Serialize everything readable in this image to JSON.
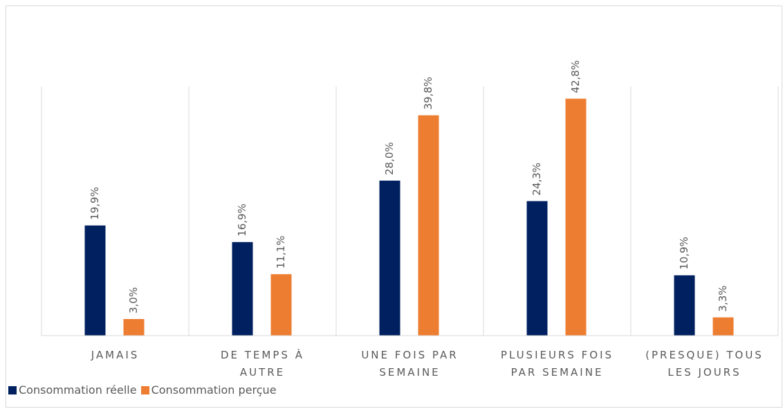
{
  "chart_data": {
    "type": "bar",
    "categories": [
      "JAMAIS",
      "DE TEMPS À AUTRE",
      "UNE FOIS PAR SEMAINE",
      "PLUSIEURS FOIS PAR SEMAINE",
      "(PRESQUE) TOUS LES JOURS"
    ],
    "series": [
      {
        "name": "Consommation réelle",
        "color": "#002060",
        "values": [
          19.9,
          16.9,
          28.0,
          24.3,
          10.9
        ],
        "value_labels": [
          "19,9%",
          "16,9%",
          "28,0%",
          "24,3%",
          "10,9%"
        ]
      },
      {
        "name": "Consommation perçue",
        "color": "#ED7D31",
        "values": [
          3.0,
          11.1,
          39.8,
          42.8,
          3.3
        ],
        "value_labels": [
          "3,0%",
          "11,1%",
          "39,8%",
          "42,8%",
          "3,3%"
        ]
      }
    ],
    "ylim": [
      0,
      45
    ],
    "legend": "bottom-left"
  }
}
